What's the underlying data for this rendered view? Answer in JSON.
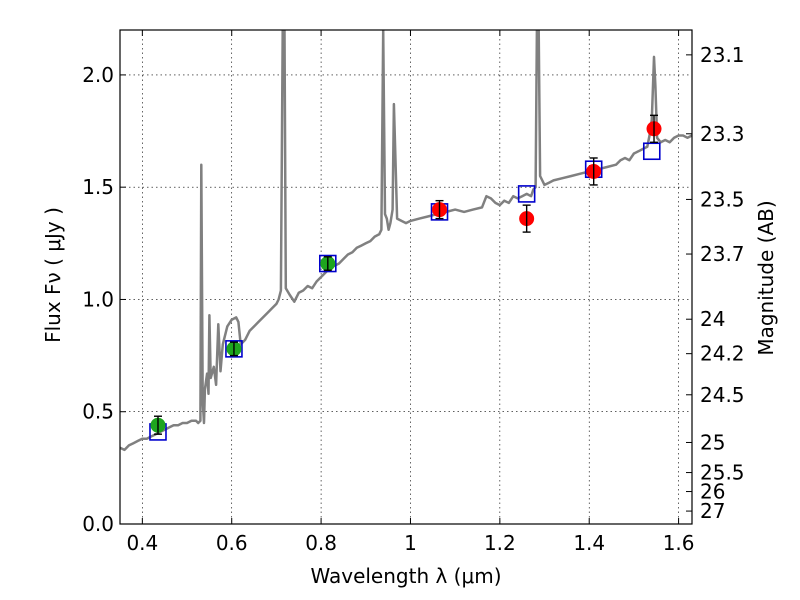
{
  "chart_data": {
    "type": "scatter",
    "xlabel": "Wavelength  λ (μm)",
    "ylabel": "Flux  Fν  ( μJy )",
    "y2label": "Magnitude (AB)",
    "xlim": [
      0.35,
      1.63
    ],
    "ylim": [
      0.0,
      2.2
    ],
    "x_ticks": [
      0.4,
      0.6,
      0.8,
      1.0,
      1.2,
      1.4,
      1.6
    ],
    "x_tick_labels": [
      "0.4",
      "0.6",
      "0.8",
      "1",
      "1.2",
      "1.4",
      "1.6"
    ],
    "y_ticks": [
      0.0,
      0.5,
      1.0,
      1.5,
      2.0
    ],
    "y_tick_labels": [
      "0.0",
      "0.5",
      "1.0",
      "1.5",
      "2.0"
    ],
    "y2_ticks": [
      {
        "label": "23.1",
        "value": 23.1
      },
      {
        "label": "23.3",
        "value": 23.3
      },
      {
        "label": "23.5",
        "value": 23.5
      },
      {
        "label": "23.7",
        "value": 23.7
      },
      {
        "label": "24",
        "value": 24.0
      },
      {
        "label": "24.2",
        "value": 24.2
      },
      {
        "label": "24.5",
        "value": 24.5
      },
      {
        "label": "25",
        "value": 25.0
      },
      {
        "label": "25.5",
        "value": 25.5
      },
      {
        "label": "26",
        "value": 26.0
      },
      {
        "label": "27",
        "value": 27.0
      }
    ],
    "grid": true,
    "colors": {
      "model_line": "#808080",
      "green_points": "#1ea51e",
      "red_points": "#ff0000",
      "model_boxes": "#0000cc",
      "error_bars": "#000000"
    },
    "model_spectrum": [
      [
        0.35,
        0.34
      ],
      [
        0.36,
        0.33
      ],
      [
        0.37,
        0.35
      ],
      [
        0.38,
        0.36
      ],
      [
        0.39,
        0.37
      ],
      [
        0.4,
        0.38
      ],
      [
        0.41,
        0.38
      ],
      [
        0.42,
        0.39
      ],
      [
        0.43,
        0.4
      ],
      [
        0.44,
        0.41
      ],
      [
        0.45,
        0.42
      ],
      [
        0.46,
        0.43
      ],
      [
        0.47,
        0.44
      ],
      [
        0.48,
        0.44
      ],
      [
        0.49,
        0.45
      ],
      [
        0.5,
        0.45
      ],
      [
        0.51,
        0.46
      ],
      [
        0.52,
        0.46
      ],
      [
        0.525,
        0.45
      ],
      [
        0.53,
        0.46
      ],
      [
        0.532,
        1.6
      ],
      [
        0.535,
        0.55
      ],
      [
        0.538,
        0.45
      ],
      [
        0.54,
        0.6
      ],
      [
        0.545,
        0.67
      ],
      [
        0.548,
        0.58
      ],
      [
        0.55,
        0.93
      ],
      [
        0.553,
        0.65
      ],
      [
        0.56,
        0.7
      ],
      [
        0.565,
        0.62
      ],
      [
        0.57,
        0.89
      ],
      [
        0.575,
        0.68
      ],
      [
        0.58,
        0.8
      ],
      [
        0.59,
        0.88
      ],
      [
        0.6,
        0.91
      ],
      [
        0.61,
        0.92
      ],
      [
        0.615,
        0.9
      ],
      [
        0.62,
        0.8
      ],
      [
        0.63,
        0.82
      ],
      [
        0.64,
        0.86
      ],
      [
        0.65,
        0.88
      ],
      [
        0.66,
        0.9
      ],
      [
        0.67,
        0.92
      ],
      [
        0.68,
        0.94
      ],
      [
        0.69,
        0.96
      ],
      [
        0.7,
        0.98
      ],
      [
        0.705,
        1.0
      ],
      [
        0.71,
        1.04
      ],
      [
        0.714,
        2.2
      ],
      [
        0.718,
        2.2
      ],
      [
        0.721,
        1.05
      ],
      [
        0.73,
        1.02
      ],
      [
        0.74,
        0.99
      ],
      [
        0.75,
        1.03
      ],
      [
        0.76,
        1.04
      ],
      [
        0.77,
        1.06
      ],
      [
        0.78,
        1.05
      ],
      [
        0.79,
        1.08
      ],
      [
        0.8,
        1.1
      ],
      [
        0.81,
        1.12
      ],
      [
        0.82,
        1.14
      ],
      [
        0.83,
        1.15
      ],
      [
        0.84,
        1.16
      ],
      [
        0.85,
        1.18
      ],
      [
        0.86,
        1.2
      ],
      [
        0.87,
        1.21
      ],
      [
        0.88,
        1.23
      ],
      [
        0.89,
        1.24
      ],
      [
        0.9,
        1.25
      ],
      [
        0.91,
        1.26
      ],
      [
        0.92,
        1.28
      ],
      [
        0.93,
        1.29
      ],
      [
        0.935,
        1.31
      ],
      [
        0.939,
        2.2
      ],
      [
        0.943,
        1.38
      ],
      [
        0.947,
        1.36
      ],
      [
        0.951,
        1.31
      ],
      [
        0.955,
        1.34
      ],
      [
        0.96,
        1.4
      ],
      [
        0.963,
        1.87
      ],
      [
        0.966,
        1.65
      ],
      [
        0.97,
        1.36
      ],
      [
        0.98,
        1.35
      ],
      [
        0.99,
        1.34
      ],
      [
        1.0,
        1.35
      ],
      [
        1.02,
        1.36
      ],
      [
        1.04,
        1.37
      ],
      [
        1.06,
        1.38
      ],
      [
        1.08,
        1.39
      ],
      [
        1.1,
        1.4
      ],
      [
        1.12,
        1.39
      ],
      [
        1.14,
        1.4
      ],
      [
        1.16,
        1.41
      ],
      [
        1.17,
        1.46
      ],
      [
        1.18,
        1.45
      ],
      [
        1.19,
        1.43
      ],
      [
        1.2,
        1.42
      ],
      [
        1.21,
        1.44
      ],
      [
        1.22,
        1.43
      ],
      [
        1.23,
        1.46
      ],
      [
        1.24,
        1.45
      ],
      [
        1.25,
        1.46
      ],
      [
        1.26,
        1.47
      ],
      [
        1.27,
        1.46
      ],
      [
        1.275,
        1.49
      ],
      [
        1.28,
        1.5
      ],
      [
        1.283,
        2.2
      ],
      [
        1.287,
        2.2
      ],
      [
        1.29,
        1.55
      ],
      [
        1.3,
        1.51
      ],
      [
        1.31,
        1.52
      ],
      [
        1.32,
        1.53
      ],
      [
        1.34,
        1.54
      ],
      [
        1.36,
        1.55
      ],
      [
        1.38,
        1.56
      ],
      [
        1.4,
        1.57
      ],
      [
        1.42,
        1.58
      ],
      [
        1.44,
        1.59
      ],
      [
        1.46,
        1.6
      ],
      [
        1.47,
        1.62
      ],
      [
        1.48,
        1.63
      ],
      [
        1.49,
        1.62
      ],
      [
        1.5,
        1.65
      ],
      [
        1.51,
        1.66
      ],
      [
        1.52,
        1.67
      ],
      [
        1.53,
        1.68
      ],
      [
        1.535,
        1.73
      ],
      [
        1.54,
        1.8
      ],
      [
        1.545,
        2.08
      ],
      [
        1.548,
        1.95
      ],
      [
        1.552,
        1.72
      ],
      [
        1.56,
        1.7
      ],
      [
        1.57,
        1.71
      ],
      [
        1.58,
        1.7
      ],
      [
        1.59,
        1.72
      ],
      [
        1.6,
        1.73
      ],
      [
        1.61,
        1.73
      ],
      [
        1.62,
        1.72
      ],
      [
        1.63,
        1.73
      ]
    ],
    "observed_green": [
      {
        "x": 0.435,
        "y": 0.44,
        "err": 0.04
      },
      {
        "x": 0.605,
        "y": 0.78,
        "err": 0.03
      },
      {
        "x": 0.815,
        "y": 1.16,
        "err": 0.03
      }
    ],
    "observed_red": [
      {
        "x": 1.065,
        "y": 1.4,
        "err": 0.04
      },
      {
        "x": 1.26,
        "y": 1.36,
        "err": 0.06
      },
      {
        "x": 1.41,
        "y": 1.57,
        "err": 0.06
      },
      {
        "x": 1.545,
        "y": 1.76,
        "err": 0.06
      }
    ],
    "model_boxes": [
      {
        "x": 0.435,
        "y": 0.41
      },
      {
        "x": 0.605,
        "y": 0.78
      },
      {
        "x": 0.815,
        "y": 1.16
      },
      {
        "x": 1.065,
        "y": 1.39
      },
      {
        "x": 1.26,
        "y": 1.47
      },
      {
        "x": 1.41,
        "y": 1.58
      },
      {
        "x": 1.54,
        "y": 1.66
      }
    ]
  }
}
